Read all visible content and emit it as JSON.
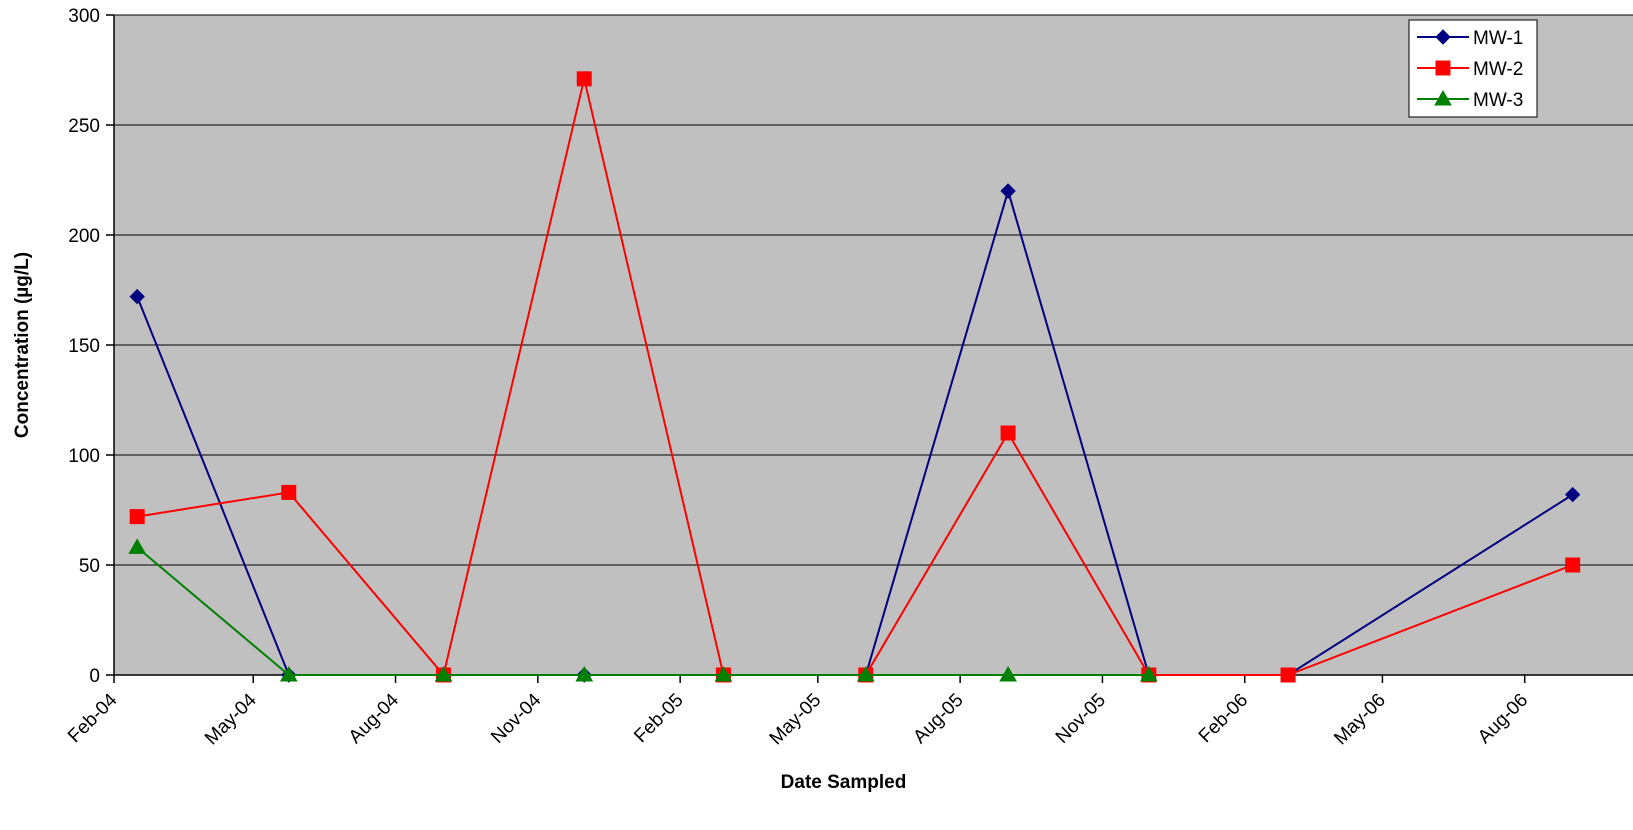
{
  "chart_data": {
    "type": "line",
    "title": "",
    "xlabel": "Date Sampled",
    "ylabel": "Concentration (µg/L)",
    "ylim": [
      0,
      300
    ],
    "y_ticks": [
      0,
      50,
      100,
      150,
      200,
      250,
      300
    ],
    "xlim": [
      "2004-02-01",
      "2006-10-10"
    ],
    "x_ticks": [
      {
        "date": "2004-02-01",
        "label": "Feb-04"
      },
      {
        "date": "2004-05-01",
        "label": "May-04"
      },
      {
        "date": "2004-08-01",
        "label": "Aug-04"
      },
      {
        "date": "2004-11-01",
        "label": "Nov-04"
      },
      {
        "date": "2005-02-01",
        "label": "Feb-05"
      },
      {
        "date": "2005-05-01",
        "label": "May-05"
      },
      {
        "date": "2005-08-01",
        "label": "Aug-05"
      },
      {
        "date": "2005-11-01",
        "label": "Nov-05"
      },
      {
        "date": "2006-02-01",
        "label": "Feb-06"
      },
      {
        "date": "2006-05-01",
        "label": "May-06"
      },
      {
        "date": "2006-08-01",
        "label": "Aug-06"
      }
    ],
    "grid": "horizontal",
    "plot_background": "#c0c0c0",
    "legend_position": "top-right",
    "series": [
      {
        "name": "MW-1",
        "color": "#000080",
        "marker": "diamond",
        "points": [
          {
            "x": "2004-02-16",
            "y": 172
          },
          {
            "x": "2004-05-24",
            "y": 0
          },
          {
            "x": "2004-12-01",
            "y": 0
          },
          {
            "x": "2005-03-01",
            "y": 0
          },
          {
            "x": "2005-06-01",
            "y": 0
          },
          {
            "x": "2005-09-01",
            "y": 220
          },
          {
            "x": "2005-12-01",
            "y": 0
          },
          {
            "x": "2006-03-01",
            "y": 0
          },
          {
            "x": "2006-09-01",
            "y": 82
          }
        ]
      },
      {
        "name": "MW-2",
        "color": "#ff0000",
        "marker": "square",
        "points": [
          {
            "x": "2004-02-16",
            "y": 72
          },
          {
            "x": "2004-05-24",
            "y": 83
          },
          {
            "x": "2004-09-01",
            "y": 0
          },
          {
            "x": "2004-12-01",
            "y": 271
          },
          {
            "x": "2005-03-01",
            "y": 0
          },
          {
            "x": "2005-06-01",
            "y": 0
          },
          {
            "x": "2005-09-01",
            "y": 110
          },
          {
            "x": "2005-12-01",
            "y": 0
          },
          {
            "x": "2006-03-01",
            "y": 0
          },
          {
            "x": "2006-09-01",
            "y": 50
          }
        ]
      },
      {
        "name": "MW-3",
        "color": "#008000",
        "marker": "triangle",
        "points": [
          {
            "x": "2004-02-16",
            "y": 58
          },
          {
            "x": "2004-05-24",
            "y": 0
          },
          {
            "x": "2004-09-01",
            "y": 0
          },
          {
            "x": "2004-12-01",
            "y": 0
          },
          {
            "x": "2005-03-01",
            "y": 0
          },
          {
            "x": "2005-06-01",
            "y": 0
          },
          {
            "x": "2005-09-01",
            "y": 0
          },
          {
            "x": "2005-12-01",
            "y": 0
          }
        ]
      }
    ]
  }
}
